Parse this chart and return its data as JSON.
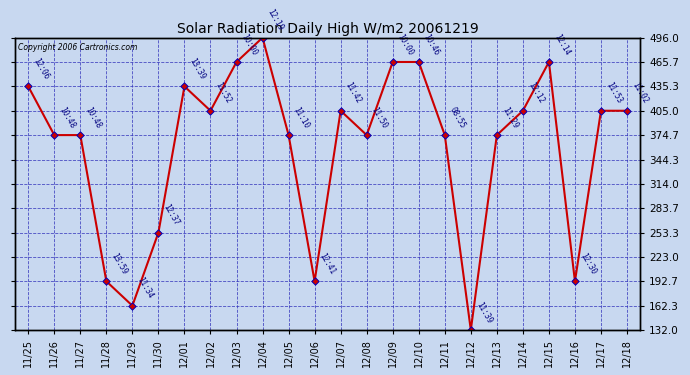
{
  "title": "Solar Radiation Daily High W/m2 20061219",
  "copyright": "Copyright 2006 Cartronics.com",
  "background_color": "#c8d8f0",
  "line_color": "#cc0000",
  "marker_color": "#cc0000",
  "marker_edge_color": "#0000bb",
  "grid_color": "#3333bb",
  "text_color": "#000000",
  "ylim": [
    132.0,
    496.0
  ],
  "yticks": [
    132.0,
    162.3,
    192.7,
    223.0,
    253.3,
    283.7,
    314.0,
    344.3,
    374.7,
    405.0,
    435.3,
    465.7,
    496.0
  ],
  "dates": [
    "11/25",
    "11/26",
    "11/27",
    "11/28",
    "11/29",
    "11/30",
    "12/01",
    "12/02",
    "12/03",
    "12/04",
    "12/05",
    "12/06",
    "12/07",
    "12/08",
    "12/09",
    "12/10",
    "12/11",
    "12/12",
    "12/13",
    "12/14",
    "12/15",
    "12/16",
    "12/17",
    "12/18"
  ],
  "values": [
    435.3,
    374.7,
    374.7,
    192.7,
    162.3,
    253.3,
    435.3,
    405.0,
    465.7,
    496.0,
    374.7,
    192.7,
    405.0,
    374.7,
    465.7,
    465.7,
    374.7,
    132.0,
    374.7,
    405.0,
    465.7,
    192.7,
    405.0,
    405.0
  ],
  "annotations": [
    "12:06",
    "10:48",
    "10:48",
    "13:59",
    "11:34",
    "12:37",
    "13:39",
    "11:52",
    "10:00",
    "12:19",
    "11:10",
    "12:41",
    "11:42",
    "11:50",
    "10:00",
    "10:46",
    "08:55",
    "11:39",
    "11:29",
    "12:12",
    "12:14",
    "12:30",
    "11:53",
    "11:02"
  ]
}
